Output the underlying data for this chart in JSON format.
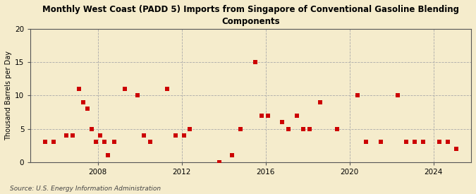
{
  "title": "Monthly West Coast (PADD 5) Imports from Singapore of Conventional Gasoline Blending\nComponents",
  "ylabel": "Thousand Barrels per Day",
  "source": "Source: U.S. Energy Information Administration",
  "background_color": "#f5eccc",
  "plot_bg_color": "#f5eccc",
  "marker_color": "#cc0000",
  "marker_size": 18,
  "ylim": [
    0,
    20
  ],
  "yticks": [
    0,
    5,
    10,
    15,
    20
  ],
  "xlim_min": 2004.8,
  "xlim_max": 2025.8,
  "xticks": [
    2008,
    2012,
    2016,
    2020,
    2024
  ],
  "data_x": [
    2005.5,
    2005.9,
    2006.5,
    2006.8,
    2007.1,
    2007.3,
    2007.5,
    2007.7,
    2007.9,
    2008.1,
    2008.3,
    2008.5,
    2008.8,
    2009.3,
    2009.9,
    2010.2,
    2010.5,
    2011.3,
    2011.7,
    2012.1,
    2012.4,
    2013.8,
    2014.4,
    2014.8,
    2015.5,
    2015.8,
    2016.1,
    2016.8,
    2017.1,
    2017.5,
    2017.8,
    2018.1,
    2018.6,
    2019.4,
    2020.4,
    2020.8,
    2021.5,
    2022.3,
    2022.7,
    2023.1,
    2023.5,
    2024.3,
    2024.7,
    2025.1
  ],
  "data_y": [
    3,
    3,
    4,
    4,
    11,
    9,
    8,
    5,
    3,
    4,
    3,
    1,
    3,
    11,
    10,
    4,
    3,
    11,
    4,
    4,
    5,
    0,
    1,
    5,
    15,
    7,
    7,
    6,
    5,
    7,
    5,
    5,
    9,
    5,
    10,
    3,
    3,
    10,
    3,
    3,
    3,
    3,
    3,
    2
  ]
}
